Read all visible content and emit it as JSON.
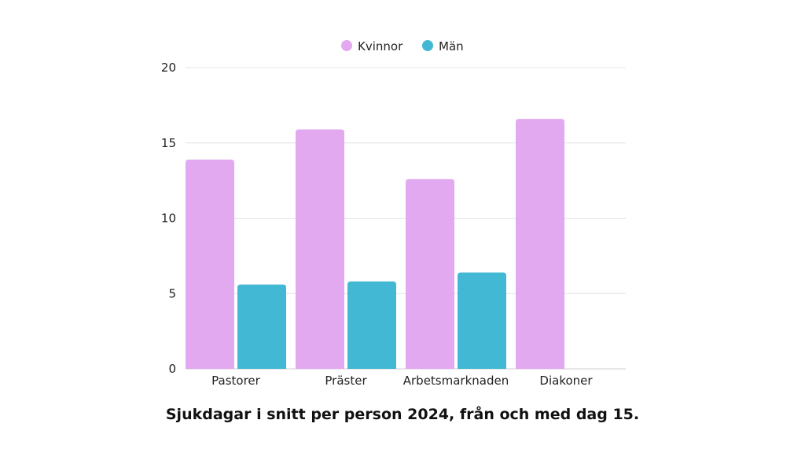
{
  "chart_data": {
    "type": "bar",
    "title": "Sjukdagar i snitt per person 2024, från och med dag 15.",
    "xlabel": "",
    "ylabel": "",
    "ylim": [
      0,
      20
    ],
    "yticks": [
      0,
      5,
      10,
      15,
      20
    ],
    "categories": [
      "Pastorer",
      "Präster",
      "Arbetsmarknaden",
      "Diakoner"
    ],
    "series": [
      {
        "name": "Kvinnor",
        "color": "#e2a9f0",
        "values": [
          13.9,
          15.9,
          12.6,
          16.6
        ]
      },
      {
        "name": "Män",
        "color": "#42b8d5",
        "values": [
          5.6,
          5.8,
          6.4,
          null
        ]
      }
    ],
    "legend": "top-center",
    "grid": true
  }
}
